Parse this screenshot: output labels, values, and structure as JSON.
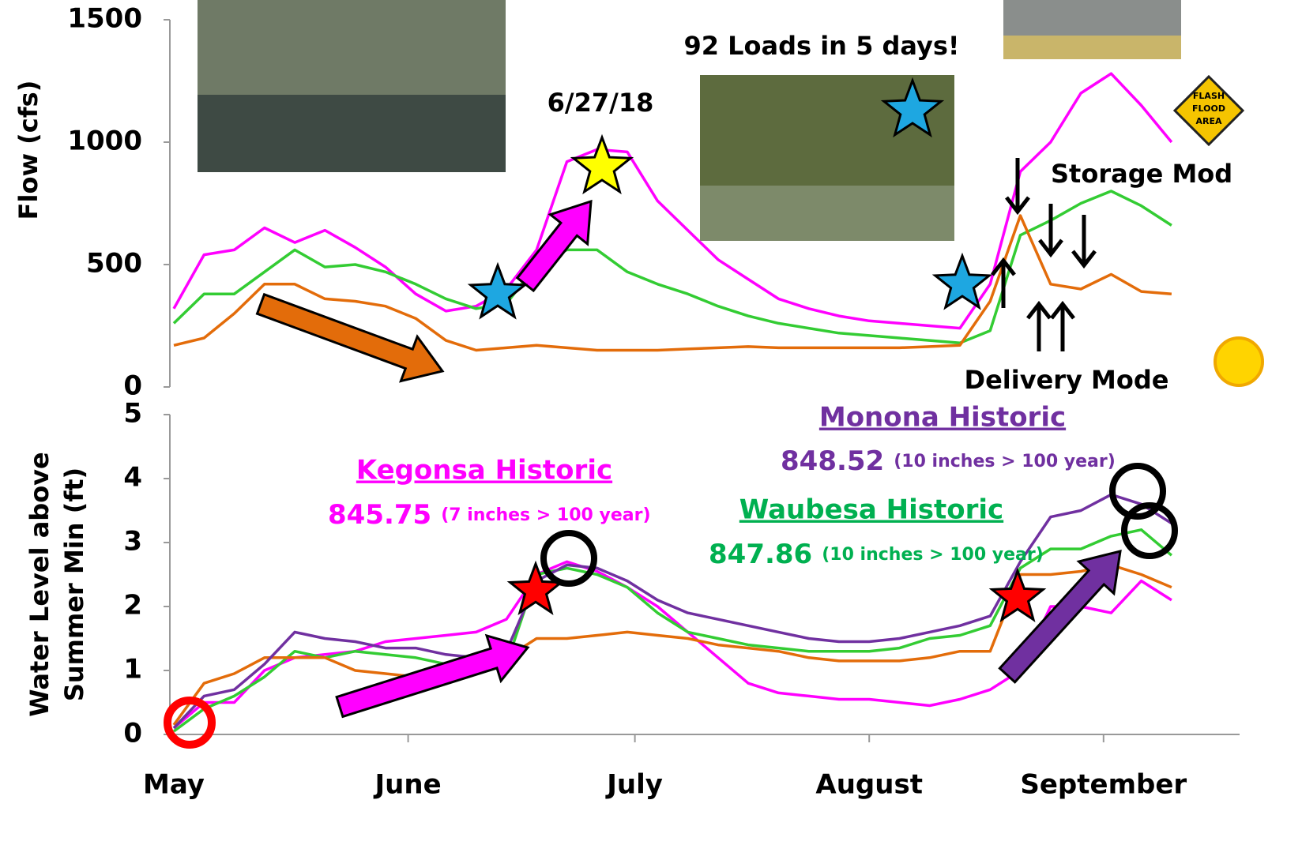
{
  "chart_data": [
    {
      "type": "line",
      "y_label": "Flow (cfs)",
      "x": [
        0,
        4,
        8,
        12,
        16,
        20,
        24,
        28,
        32,
        36,
        40,
        44,
        48,
        52,
        56,
        60,
        64,
        68,
        72,
        76,
        80,
        84,
        88,
        92,
        96,
        100,
        104,
        108,
        112,
        116,
        120,
        124,
        128,
        132
      ],
      "xlim": [
        0,
        141
      ],
      "ylim": [
        0,
        1500
      ],
      "yticks": [
        0,
        500,
        1000,
        1500
      ],
      "series": [
        {
          "color": "#ff00ff",
          "values": [
            320,
            540,
            560,
            650,
            590,
            640,
            570,
            490,
            380,
            310,
            330,
            400,
            560,
            920,
            970,
            960,
            760,
            640,
            520,
            440,
            360,
            320,
            290,
            270,
            260,
            250,
            240,
            420,
            880,
            1000,
            1200,
            1280,
            1150,
            1000
          ]
        },
        {
          "color": "#33cc33",
          "values": [
            260,
            380,
            380,
            470,
            560,
            490,
            500,
            470,
            420,
            360,
            320,
            340,
            500,
            560,
            560,
            470,
            420,
            380,
            330,
            290,
            260,
            240,
            220,
            210,
            200,
            190,
            180,
            230,
            620,
            680,
            750,
            800,
            740,
            660
          ]
        },
        {
          "color": "#e36c0a",
          "values": [
            170,
            200,
            300,
            420,
            420,
            360,
            350,
            330,
            280,
            190,
            150,
            160,
            170,
            160,
            150,
            150,
            150,
            155,
            160,
            165,
            160,
            160,
            160,
            160,
            160,
            165,
            170,
            350,
            700,
            420,
            400,
            460,
            390,
            380
          ]
        }
      ],
      "annotations": [
        "92 Loads in 5 days!",
        "6/27/18",
        "Storage Mod",
        "Delivery Mode",
        "FLASH",
        "FLOOD",
        "AREA"
      ]
    },
    {
      "type": "line",
      "y_label": [
        "Water Level above",
        "Summer Min (ft)"
      ],
      "x": [
        0,
        4,
        8,
        12,
        16,
        20,
        24,
        28,
        32,
        36,
        40,
        44,
        48,
        52,
        56,
        60,
        64,
        68,
        72,
        76,
        80,
        84,
        88,
        92,
        96,
        100,
        104,
        108,
        112,
        116,
        120,
        124,
        128,
        132
      ],
      "xlim": [
        0,
        141
      ],
      "ylim": [
        0,
        5
      ],
      "yticks": [
        0,
        1,
        2,
        3,
        4,
        5
      ],
      "xticks": [
        {
          "value": 0,
          "label": "May"
        },
        {
          "value": 31,
          "label": "June"
        },
        {
          "value": 61,
          "label": "July"
        },
        {
          "value": 92,
          "label": "August"
        },
        {
          "value": 123,
          "label": "September"
        }
      ],
      "series": [
        {
          "color": "#ff00ff",
          "values": [
            0.1,
            0.5,
            0.5,
            1.0,
            1.2,
            1.25,
            1.3,
            1.45,
            1.5,
            1.55,
            1.6,
            1.8,
            2.5,
            2.7,
            2.55,
            2.3,
            2.0,
            1.6,
            1.2,
            0.8,
            0.65,
            0.6,
            0.55,
            0.55,
            0.5,
            0.45,
            0.55,
            0.7,
            1.0,
            2.0,
            2.0,
            1.9,
            2.4,
            2.1
          ]
        },
        {
          "color": "#33cc33",
          "values": [
            0.05,
            0.4,
            0.6,
            0.9,
            1.3,
            1.2,
            1.3,
            1.25,
            1.2,
            1.1,
            1.05,
            1.1,
            2.5,
            2.6,
            2.5,
            2.3,
            1.9,
            1.6,
            1.5,
            1.4,
            1.35,
            1.3,
            1.3,
            1.3,
            1.35,
            1.5,
            1.55,
            1.7,
            2.6,
            2.9,
            2.9,
            3.1,
            3.2,
            2.8
          ]
        },
        {
          "color": "#e36c0a",
          "values": [
            0.15,
            0.8,
            0.95,
            1.2,
            1.2,
            1.2,
            1.0,
            0.95,
            0.9,
            0.95,
            1.0,
            1.2,
            1.5,
            1.5,
            1.55,
            1.6,
            1.55,
            1.5,
            1.4,
            1.35,
            1.3,
            1.2,
            1.15,
            1.15,
            1.15,
            1.2,
            1.3,
            1.3,
            2.5,
            2.5,
            2.55,
            2.65,
            2.5,
            2.3
          ]
        },
        {
          "color": "#7030a0",
          "values": [
            0.1,
            0.6,
            0.7,
            1.1,
            1.6,
            1.5,
            1.45,
            1.35,
            1.35,
            1.25,
            1.2,
            1.3,
            2.4,
            2.65,
            2.6,
            2.4,
            2.1,
            1.9,
            1.8,
            1.7,
            1.6,
            1.5,
            1.45,
            1.45,
            1.5,
            1.6,
            1.7,
            1.85,
            2.7,
            3.4,
            3.5,
            3.75,
            3.6,
            3.3
          ]
        }
      ],
      "annotations": [
        "Monona Historic",
        "848.52",
        "(10 inches > 100 year)",
        "Kegonsa Historic",
        "845.75",
        "(7 inches > 100 year)",
        "Waubesa Historic",
        "847.86",
        "(10 inches > 100 year)"
      ]
    }
  ]
}
